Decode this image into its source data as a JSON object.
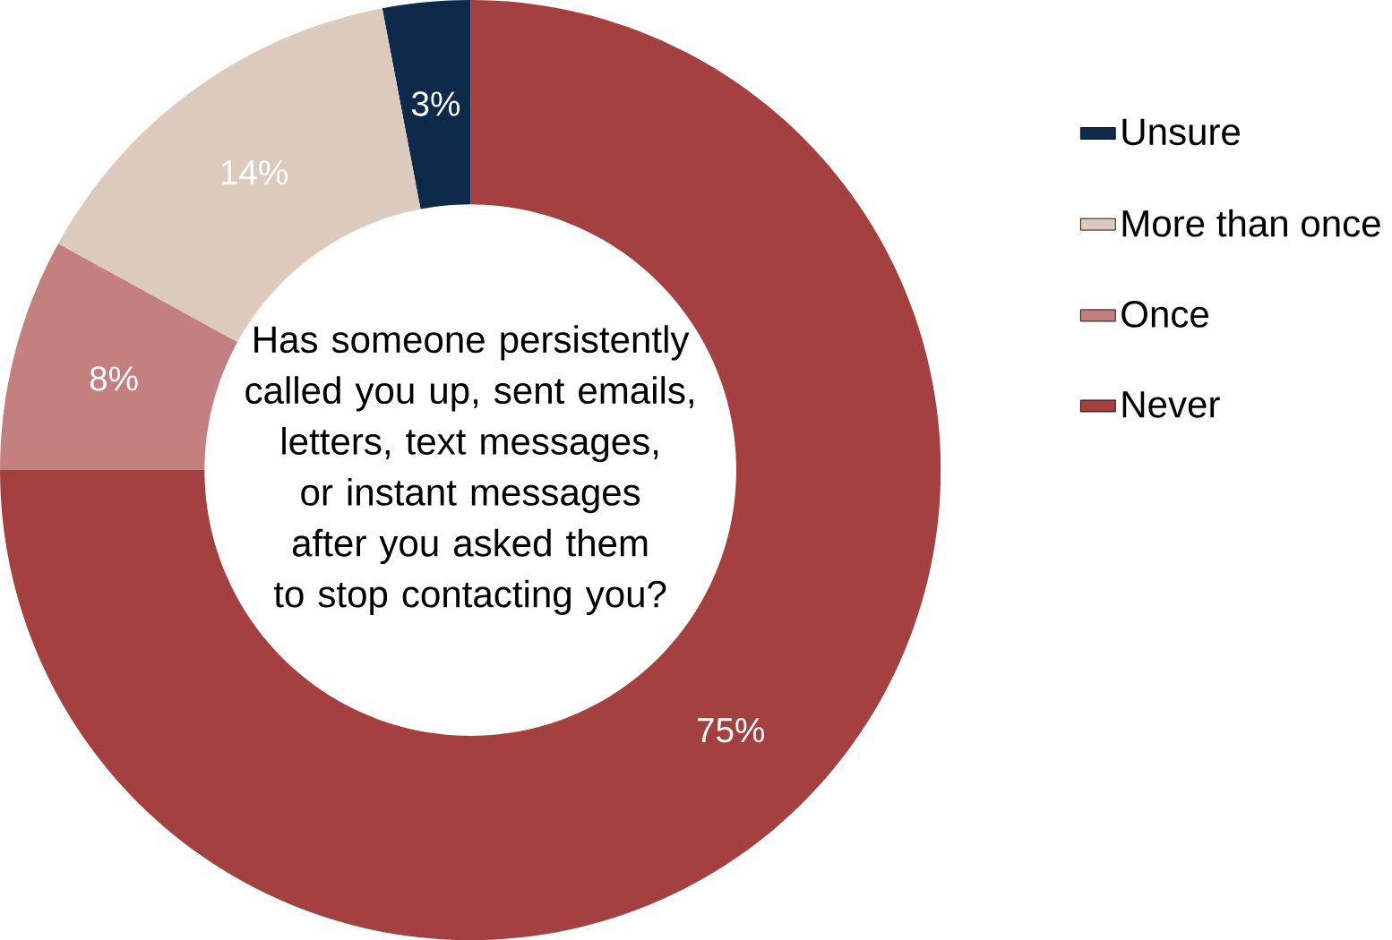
{
  "chart_data": {
    "type": "donut",
    "title": "Has someone persistently called you up, sent emails, letters, text messages, or instant messages after you asked them to stop contacting you?",
    "categories": [
      "Unsure",
      "More than once",
      "Once",
      "Never"
    ],
    "values": [
      3,
      14,
      8,
      75
    ],
    "value_labels": [
      "3%",
      "14%",
      "8%",
      "75%"
    ],
    "colors": [
      "#0e2a4b",
      "#dccbbd",
      "#c47f7f",
      "#a44040"
    ],
    "legend": "right"
  }
}
